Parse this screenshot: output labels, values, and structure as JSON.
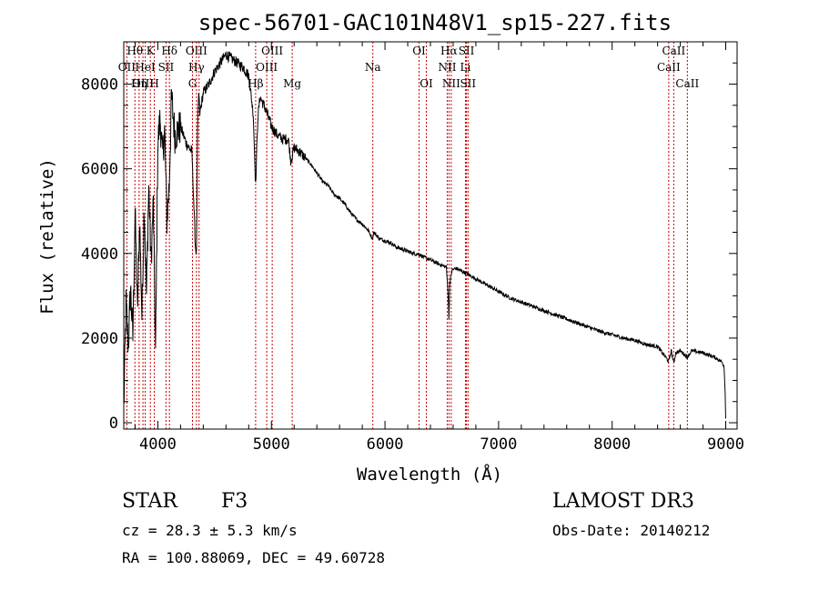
{
  "chart_data": {
    "type": "line",
    "title": "spec-56701-GAC101N48V1_sp15-227.fits",
    "xlabel": "Wavelength (Å)",
    "ylabel": "Flux (relative)",
    "xlim": [
      3700,
      9100
    ],
    "ylim": [
      -150,
      9000
    ],
    "xticks": [
      4000,
      5000,
      6000,
      7000,
      8000,
      9000
    ],
    "yticks": [
      0,
      2000,
      4000,
      6000,
      8000
    ],
    "grid": false,
    "series": [
      {
        "name": "spectrum",
        "x": [
          3700,
          3720,
          3740,
          3760,
          3780,
          3800,
          3820,
          3840,
          3860,
          3880,
          3900,
          3920,
          3940,
          3960,
          3980,
          4000,
          4020,
          4040,
          4060,
          4080,
          4100,
          4120,
          4150,
          4200,
          4250,
          4300,
          4330,
          4340,
          4350,
          4360,
          4370,
          4400,
          4450,
          4500,
          4550,
          4600,
          4650,
          4700,
          4750,
          4800,
          4840,
          4861,
          4880,
          4900,
          4950,
          5000,
          5050,
          5100,
          5150,
          5170,
          5183,
          5200,
          5250,
          5300,
          5350,
          5400,
          5450,
          5500,
          5550,
          5600,
          5650,
          5700,
          5750,
          5800,
          5850,
          5890,
          5893,
          5900,
          5950,
          6000,
          6050,
          6100,
          6150,
          6200,
          6250,
          6300,
          6350,
          6400,
          6450,
          6500,
          6540,
          6555,
          6563,
          6570,
          6590,
          6620,
          6700,
          6800,
          6900,
          7000,
          7100,
          7200,
          7300,
          7400,
          7500,
          7600,
          7700,
          7800,
          7900,
          8000,
          8100,
          8200,
          8300,
          8400,
          8498,
          8520,
          8542,
          8560,
          8600,
          8662,
          8700,
          8800,
          8900,
          8960,
          8985,
          8995,
          9000
        ],
        "values": [
          300,
          2800,
          1800,
          3200,
          2000,
          5000,
          2600,
          4800,
          2500,
          5200,
          3000,
          5600,
          3800,
          5200,
          1600,
          6600,
          7200,
          6300,
          6900,
          4800,
          5600,
          7700,
          6800,
          7000,
          6600,
          6400,
          4200,
          4000,
          6900,
          7800,
          7300,
          7800,
          8000,
          8300,
          8500,
          8700,
          8600,
          8500,
          8400,
          8200,
          7300,
          5600,
          7200,
          7700,
          7400,
          7000,
          6800,
          6700,
          6700,
          6200,
          6300,
          6500,
          6400,
          6250,
          6100,
          5900,
          5700,
          5600,
          5400,
          5300,
          5150,
          4950,
          4800,
          4700,
          4550,
          4350,
          4400,
          4500,
          4350,
          4300,
          4250,
          4150,
          4100,
          4050,
          4000,
          3980,
          3900,
          3850,
          3780,
          3720,
          3680,
          3100,
          2450,
          3300,
          3600,
          3650,
          3550,
          3400,
          3250,
          3100,
          2950,
          2850,
          2750,
          2650,
          2550,
          2450,
          2350,
          2250,
          2150,
          2080,
          2000,
          1950,
          1850,
          1800,
          1450,
          1700,
          1400,
          1650,
          1700,
          1550,
          1700,
          1650,
          1550,
          1450,
          1350,
          700,
          100
        ]
      }
    ],
    "line_labels": [
      {
        "label": "Hθ",
        "wave": 3798,
        "row": 0
      },
      {
        "label": "K",
        "wave": 3934,
        "row": 0
      },
      {
        "label": "Hδ",
        "wave": 4102,
        "row": 0
      },
      {
        "label": "OIII",
        "wave": 4340,
        "row": 0
      },
      {
        "label": "OIII",
        "wave": 5007,
        "row": 0
      },
      {
        "label": "OI",
        "wave": 6300,
        "row": 0
      },
      {
        "label": "Hα",
        "wave": 6563,
        "row": 0
      },
      {
        "label": "SII",
        "wave": 6717,
        "row": 0
      },
      {
        "label": "CaII",
        "wave": 8542,
        "row": 0
      },
      {
        "label": "OII",
        "wave": 3727,
        "row": 1
      },
      {
        "label": "HeI",
        "wave": 3889,
        "row": 1
      },
      {
        "label": "SII",
        "wave": 4072,
        "row": 1
      },
      {
        "label": "Hγ",
        "wave": 4340,
        "row": 1
      },
      {
        "label": "OIII",
        "wave": 4959,
        "row": 1
      },
      {
        "label": "Na",
        "wave": 5893,
        "row": 1
      },
      {
        "label": "NII",
        "wave": 6548,
        "row": 1
      },
      {
        "label": "Li",
        "wave": 6708,
        "row": 1
      },
      {
        "label": "CaII",
        "wave": 8498,
        "row": 1
      },
      {
        "label": "OIII",
        "wave": 3869,
        "row": 2
      },
      {
        "label": "Hη",
        "wave": 3835,
        "row": 2
      },
      {
        "label": "H",
        "wave": 3969,
        "row": 2
      },
      {
        "label": "G",
        "wave": 4305,
        "row": 2
      },
      {
        "label": "Hβ",
        "wave": 4861,
        "row": 2
      },
      {
        "label": "Mg",
        "wave": 5183,
        "row": 2
      },
      {
        "label": "OI",
        "wave": 6364,
        "row": 2
      },
      {
        "label": "NII",
        "wave": 6583,
        "row": 2
      },
      {
        "label": "SII",
        "wave": 6731,
        "row": 2
      },
      {
        "label": "CaII",
        "wave": 8662,
        "row": 2
      }
    ],
    "marker_waves": [
      3727,
      3798,
      3835,
      3869,
      3889,
      3934,
      3969,
      4072,
      4102,
      4305,
      4340,
      4363,
      4861,
      4959,
      5007,
      5183,
      5893,
      6300,
      6364,
      6548,
      6563,
      6583,
      6708,
      6717,
      6731,
      8498,
      8542,
      8662
    ]
  },
  "info": {
    "object_class": "STAR",
    "subclass": "F3",
    "survey": "LAMOST DR3",
    "redshift": "cz = 28.3 ± 5.3 km/s",
    "obs_date": "Obs-Date: 20140212",
    "coords": "RA = 100.88069, DEC =  49.60728"
  },
  "colors": {
    "spectrum": "#000000",
    "marker": "#cc0000"
  }
}
